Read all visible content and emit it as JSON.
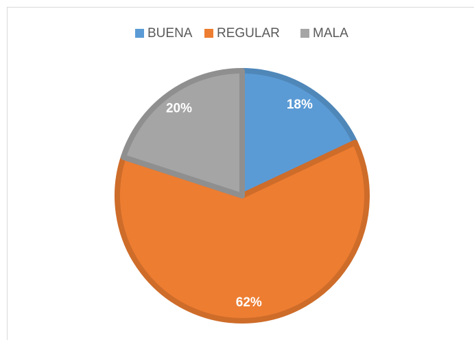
{
  "chart_data": {
    "type": "pie",
    "categories": [
      "BUENA",
      "REGULAR",
      "MALA"
    ],
    "values": [
      18,
      62,
      20
    ],
    "value_labels": [
      "18%",
      "62%",
      "20%"
    ],
    "colors": [
      "#5b9bd5",
      "#ed7d31",
      "#a5a5a5"
    ],
    "legend": "top"
  }
}
